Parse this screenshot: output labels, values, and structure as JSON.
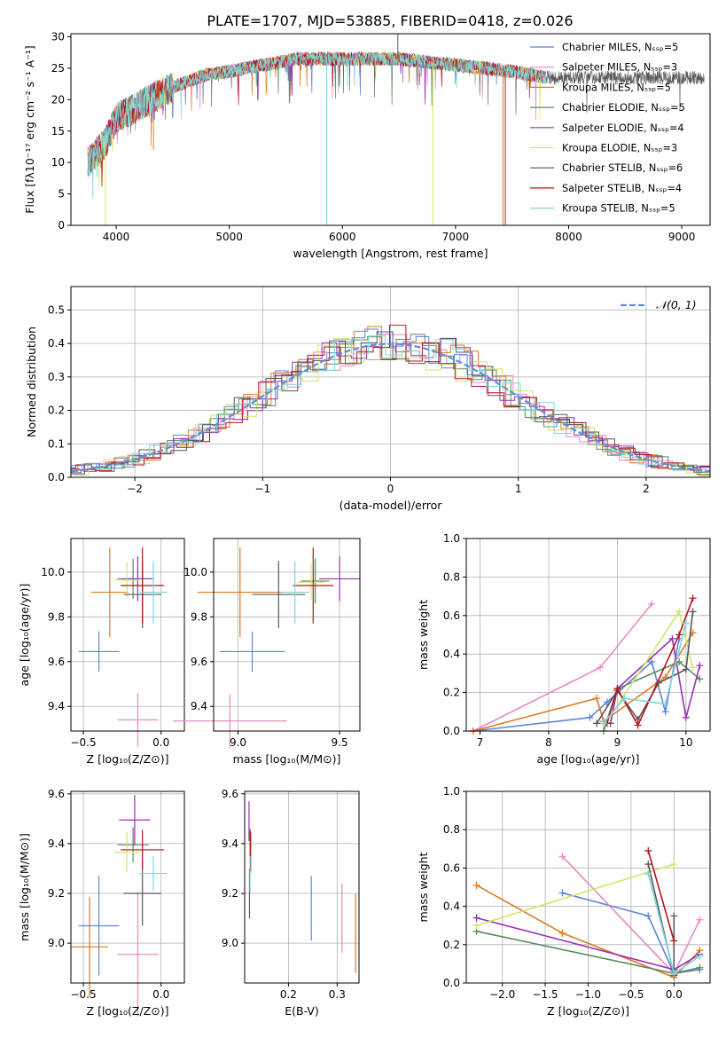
{
  "figure_title": "PLATE=1707, MJD=53885, FIBERID=0418, z=0.026",
  "colors": {
    "miles_chabrier": "#5f83d9",
    "miles_salpeter": "#e68bc2",
    "miles_kroupa": "#e07a22",
    "elodie_chabrier": "#5b8a5b",
    "elodie_salpeter": "#9a2fb2",
    "elodie_kroupa": "#cfe86a",
    "stelib_chabrier": "#595959",
    "stelib_salpeter": "#b3151b",
    "stelib_kroupa": "#7dd6dc"
  },
  "chart_data": [
    {
      "id": "spectrum",
      "type": "line",
      "xlabel": "wavelength [Angstrom, rest frame]",
      "ylabel": "Flux [fλ10⁻¹⁷ erg cm⁻² s⁻¹ A⁻¹]",
      "xlim": [
        3600,
        9250
      ],
      "ylim": [
        0,
        30.5
      ],
      "xticks": [
        4000,
        5000,
        6000,
        7000,
        8000,
        9000
      ],
      "yticks": [
        0,
        5,
        10,
        15,
        20,
        25,
        30
      ],
      "legend_position": "right",
      "continuum": {
        "x": [
          3750,
          3900,
          4000,
          4200,
          4500,
          4800,
          5000,
          5300,
          5600,
          6000,
          6500,
          7000,
          7500,
          7800
        ],
        "y": [
          10,
          13,
          17,
          19,
          22,
          24,
          24.5,
          25.5,
          26.5,
          26.5,
          26.5,
          25.5,
          24.5,
          23.5
        ]
      },
      "series": [
        {
          "name": "Chabrier MILES, N_SSP=5",
          "color_key": "miles_chabrier"
        },
        {
          "name": "Salpeter MILES, N_SSP=3",
          "color_key": "miles_salpeter"
        },
        {
          "name": "Kroupa MILES, N_SSP=5",
          "color_key": "miles_kroupa"
        },
        {
          "name": "Chabrier ELODIE, N_SSP=5",
          "color_key": "elodie_chabrier"
        },
        {
          "name": "Salpeter ELODIE, N_SSP=4",
          "color_key": "elodie_salpeter"
        },
        {
          "name": "Kroupa ELODIE, N_SSP=3",
          "color_key": "elodie_kroupa"
        },
        {
          "name": "Chabrier STELIB, N_SSP=6",
          "color_key": "stelib_chabrier"
        },
        {
          "name": "Salpeter STELIB, N_SSP=4",
          "color_key": "stelib_salpeter"
        },
        {
          "name": "Kroupa STELIB, N_SSP=5",
          "color_key": "stelib_kroupa"
        }
      ]
    },
    {
      "id": "residuals",
      "type": "line",
      "xlabel": "(data-model)/error",
      "ylabel": "Normed distribution",
      "xlim": [
        -2.5,
        2.5
      ],
      "ylim": [
        0,
        0.57
      ],
      "xticks": [
        -2,
        -1,
        0,
        1,
        2
      ],
      "yticks": [
        0.0,
        0.1,
        0.2,
        0.3,
        0.4,
        0.5
      ],
      "grid": true,
      "legend_position": "top-right",
      "reference_label": "𝒩(0, 1)",
      "reference_color": "#5f8fd6"
    },
    {
      "id": "age_vs_Z",
      "type": "scatter",
      "xlabel": "Z [log₁₀(Z/Z⊙)]",
      "ylabel": "age  [log₁₀(age/yr)]",
      "xlim": [
        -0.58,
        0.15
      ],
      "ylim": [
        9.29,
        10.15
      ],
      "xticks": [
        -0.5,
        0.0
      ],
      "yticks": [
        9.4,
        9.6,
        9.8,
        10.0
      ],
      "grid": true,
      "points": [
        {
          "color_key": "miles_chabrier",
          "x": -0.4,
          "xerr": 0.13,
          "y": 9.645,
          "yerr": 0.09
        },
        {
          "color_key": "miles_salpeter",
          "x": -0.15,
          "xerr": 0.13,
          "y": 9.34,
          "yerr": 0.12
        },
        {
          "color_key": "miles_kroupa",
          "x": -0.33,
          "xerr": 0.12,
          "y": 9.91,
          "yerr": 0.2
        },
        {
          "color_key": "elodie_chabrier",
          "x": -0.18,
          "xerr": 0.1,
          "y": 9.97,
          "yerr": 0.09
        },
        {
          "color_key": "elodie_salpeter",
          "x": -0.15,
          "xerr": 0.1,
          "y": 9.97,
          "yerr": 0.1
        },
        {
          "color_key": "elodie_kroupa",
          "x": -0.22,
          "xerr": 0.08,
          "y": 9.965,
          "yerr": 0.08
        },
        {
          "color_key": "stelib_chabrier",
          "x": -0.12,
          "xerr": 0.12,
          "y": 9.9,
          "yerr": 0.15
        },
        {
          "color_key": "stelib_salpeter",
          "x": -0.12,
          "xerr": 0.14,
          "y": 9.94,
          "yerr": 0.17
        },
        {
          "color_key": "stelib_kroupa",
          "x": -0.05,
          "xerr": 0.09,
          "y": 9.91,
          "yerr": 0.14
        }
      ]
    },
    {
      "id": "age_vs_mass",
      "type": "scatter",
      "xlabel": "mass [log₁₀(M/M⊙)]",
      "ylabel": "",
      "xlim": [
        8.88,
        9.6
      ],
      "ylim": [
        9.29,
        10.15
      ],
      "xticks": [
        9.0,
        9.5
      ],
      "yticks": [
        9.4,
        9.6,
        9.8,
        10.0
      ],
      "grid": true,
      "points": [
        {
          "color_key": "miles_chabrier",
          "x": 9.07,
          "xerr": 0.16,
          "y": 9.645,
          "yerr": 0.09
        },
        {
          "color_key": "miles_salpeter",
          "x": 8.96,
          "xerr": 0.28,
          "y": 9.335,
          "yerr": 0.12
        },
        {
          "color_key": "miles_kroupa",
          "x": 9.01,
          "xerr": 0.21,
          "y": 9.91,
          "yerr": 0.2
        },
        {
          "color_key": "elodie_chabrier",
          "x": 9.38,
          "xerr": 0.07,
          "y": 9.96,
          "yerr": 0.1
        },
        {
          "color_key": "elodie_salpeter",
          "x": 9.5,
          "xerr": 0.1,
          "y": 9.97,
          "yerr": 0.1
        },
        {
          "color_key": "elodie_kroupa",
          "x": 9.36,
          "xerr": 0.07,
          "y": 9.955,
          "yerr": 0.08
        },
        {
          "color_key": "stelib_chabrier",
          "x": 9.2,
          "xerr": 0.13,
          "y": 9.9,
          "yerr": 0.15
        },
        {
          "color_key": "stelib_salpeter",
          "x": 9.37,
          "xerr": 0.1,
          "y": 9.94,
          "yerr": 0.17
        },
        {
          "color_key": "stelib_kroupa",
          "x": 9.28,
          "xerr": 0.07,
          "y": 9.91,
          "yerr": 0.14
        }
      ]
    },
    {
      "id": "weight_vs_age",
      "type": "line",
      "xlabel": "age  [log₁₀(age/yr)]",
      "ylabel": "mass weight",
      "xlim": [
        6.8,
        10.35
      ],
      "ylim": [
        0,
        1.0
      ],
      "xticks": [
        7,
        8,
        9,
        10
      ],
      "yticks": [
        0.0,
        0.2,
        0.4,
        0.6,
        0.8,
        1.0
      ],
      "grid": true,
      "series": [
        {
          "color_key": "miles_chabrier",
          "x": [
            6.9,
            8.6,
            8.85,
            9.5,
            9.7,
            9.9
          ],
          "y": [
            0.0,
            0.07,
            0.15,
            0.36,
            0.1,
            0.48
          ]
        },
        {
          "color_key": "miles_salpeter",
          "x": [
            6.9,
            8.75,
            9.5
          ],
          "y": [
            0.0,
            0.33,
            0.66
          ]
        },
        {
          "color_key": "miles_kroupa",
          "x": [
            6.9,
            8.7,
            8.8,
            9.7,
            10.1
          ],
          "y": [
            0.0,
            0.17,
            0.05,
            0.28,
            0.51
          ]
        },
        {
          "color_key": "elodie_chabrier",
          "x": [
            8.8,
            9.0,
            9.9,
            10.2
          ],
          "y": [
            0.0,
            0.22,
            0.36,
            0.27
          ]
        },
        {
          "color_key": "elodie_salpeter",
          "x": [
            8.9,
            9.0,
            9.8,
            10.0,
            10.2
          ],
          "y": [
            0.04,
            0.22,
            0.48,
            0.07,
            0.34
          ]
        },
        {
          "color_key": "elodie_kroupa",
          "x": [
            8.85,
            9.9,
            10.1
          ],
          "y": [
            0.05,
            0.62,
            0.33
          ]
        },
        {
          "color_key": "stelib_chabrier",
          "x": [
            8.7,
            9.0,
            9.3,
            9.6,
            10.0,
            10.1
          ],
          "y": [
            0.04,
            0.21,
            0.06,
            0.25,
            0.32,
            0.62
          ]
        },
        {
          "color_key": "stelib_salpeter",
          "x": [
            8.85,
            9.0,
            9.3,
            9.9,
            10.1
          ],
          "y": [
            0.04,
            0.22,
            0.03,
            0.5,
            0.69
          ]
        },
        {
          "color_key": "stelib_kroupa",
          "x": [
            8.8,
            9.1,
            9.7,
            10.0
          ],
          "y": [
            0.04,
            0.17,
            0.14,
            0.56
          ]
        }
      ]
    },
    {
      "id": "mass_vs_Z",
      "type": "scatter",
      "xlabel": "Z [log₁₀(Z/Z⊙)]",
      "ylabel": "mass [log₁₀(M/M⊙)]",
      "xlim": [
        -0.58,
        0.15
      ],
      "ylim": [
        8.84,
        9.61
      ],
      "xticks": [
        -0.5,
        0.0
      ],
      "yticks": [
        9.0,
        9.2,
        9.4,
        9.6
      ],
      "grid": true,
      "points": [
        {
          "color_key": "miles_chabrier",
          "x": -0.4,
          "xerr": 0.13,
          "y": 9.07,
          "yerr": 0.2
        },
        {
          "color_key": "miles_salpeter",
          "x": -0.15,
          "xerr": 0.13,
          "y": 8.955,
          "yerr": 0.25
        },
        {
          "color_key": "miles_kroupa",
          "x": -0.46,
          "xerr": 0.12,
          "y": 8.985,
          "yerr": 0.2
        },
        {
          "color_key": "elodie_chabrier",
          "x": -0.18,
          "xerr": 0.1,
          "y": 9.395,
          "yerr": 0.07
        },
        {
          "color_key": "elodie_salpeter",
          "x": -0.17,
          "xerr": 0.1,
          "y": 9.495,
          "yerr": 0.1
        },
        {
          "color_key": "elodie_kroupa",
          "x": -0.22,
          "xerr": 0.08,
          "y": 9.365,
          "yerr": 0.08
        },
        {
          "color_key": "stelib_chabrier",
          "x": -0.12,
          "xerr": 0.12,
          "y": 9.2,
          "yerr": 0.13
        },
        {
          "color_key": "stelib_salpeter",
          "x": -0.12,
          "xerr": 0.14,
          "y": 9.375,
          "yerr": 0.08
        },
        {
          "color_key": "stelib_kroupa",
          "x": -0.05,
          "xerr": 0.09,
          "y": 9.28,
          "yerr": 0.07
        }
      ]
    },
    {
      "id": "mass_vs_ebv",
      "type": "scatter",
      "xlabel": "E(B-V)",
      "ylabel": "",
      "xlim": [
        0.11,
        0.345
      ],
      "ylim": [
        8.84,
        9.61
      ],
      "xticks": [
        0.2,
        0.3
      ],
      "yticks": [
        9.0,
        9.2,
        9.4,
        9.6
      ],
      "grid": true,
      "points": [
        {
          "color_key": "miles_chabrier",
          "x": 0.247,
          "y": 9.14,
          "yerr": 0.13
        },
        {
          "color_key": "miles_salpeter",
          "x": 0.31,
          "y": 9.1,
          "yerr": 0.14
        },
        {
          "color_key": "miles_kroupa",
          "x": 0.338,
          "y": 9.04,
          "yerr": 0.16
        },
        {
          "color_key": "elodie_chabrier",
          "x": 0.121,
          "y": 9.39,
          "yerr": 0.07
        },
        {
          "color_key": "elodie_salpeter",
          "x": 0.119,
          "y": 9.49,
          "yerr": 0.08
        },
        {
          "color_key": "elodie_kroupa",
          "x": 0.123,
          "y": 9.36,
          "yerr": 0.08
        },
        {
          "color_key": "stelib_chabrier",
          "x": 0.12,
          "y": 9.2,
          "yerr": 0.1
        },
        {
          "color_key": "stelib_salpeter",
          "x": 0.122,
          "y": 9.37,
          "yerr": 0.08
        },
        {
          "color_key": "stelib_kroupa",
          "x": 0.121,
          "y": 9.28,
          "yerr": 0.07
        }
      ]
    },
    {
      "id": "weight_vs_Z",
      "type": "line",
      "xlabel": "Z [log₁₀(Z/Z⊙)]",
      "ylabel": "mass weight",
      "xlim": [
        -2.42,
        0.42
      ],
      "ylim": [
        0,
        1.0
      ],
      "xticks": [
        -2.0,
        -1.5,
        -1.0,
        -0.5,
        0.0
      ],
      "yticks": [
        0.0,
        0.2,
        0.4,
        0.6,
        0.8,
        1.0
      ],
      "grid": true,
      "series": [
        {
          "color_key": "miles_chabrier",
          "x": [
            -1.3,
            -0.3,
            0.0,
            0.3
          ],
          "y": [
            0.47,
            0.35,
            0.05,
            0.07
          ]
        },
        {
          "color_key": "miles_salpeter",
          "x": [
            -1.3,
            0.0,
            0.3
          ],
          "y": [
            0.66,
            0.05,
            0.33
          ]
        },
        {
          "color_key": "miles_kroupa",
          "x": [
            -2.3,
            -1.3,
            0.0,
            0.3
          ],
          "y": [
            0.51,
            0.26,
            0.03,
            0.17
          ]
        },
        {
          "color_key": "elodie_chabrier",
          "x": [
            -2.3,
            0.0,
            0.3
          ],
          "y": [
            0.27,
            0.05,
            0.08
          ]
        },
        {
          "color_key": "elodie_salpeter",
          "x": [
            -2.3,
            0.0,
            0.3
          ],
          "y": [
            0.34,
            0.07,
            0.15
          ]
        },
        {
          "color_key": "elodie_kroupa",
          "x": [
            -2.3,
            0.0
          ],
          "y": [
            0.3,
            0.62
          ]
        },
        {
          "color_key": "stelib_chabrier",
          "x": [
            -0.3,
            0.0,
            0.0
          ],
          "y": [
            0.62,
            0.04,
            0.35
          ]
        },
        {
          "color_key": "stelib_salpeter",
          "x": [
            -0.3,
            0.0
          ],
          "y": [
            0.69,
            0.22
          ]
        },
        {
          "color_key": "stelib_kroupa",
          "x": [
            -0.3,
            0.0,
            0.3
          ],
          "y": [
            0.57,
            0.05,
            0.14
          ]
        }
      ]
    }
  ]
}
